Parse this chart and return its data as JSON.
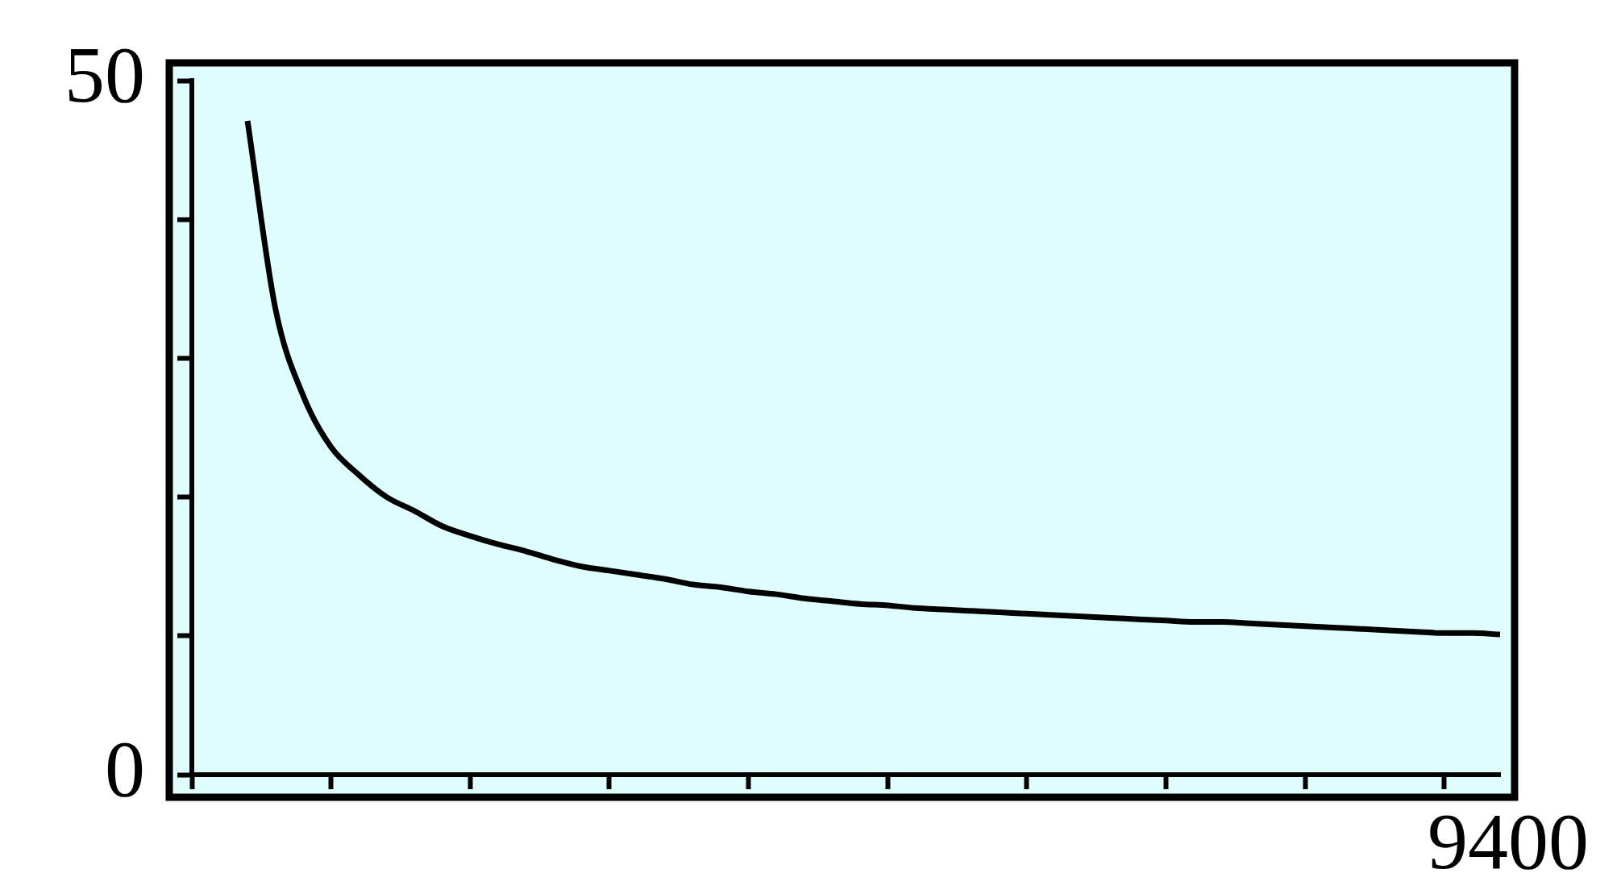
{
  "chart_data": {
    "type": "line",
    "categories": [
      null,
      null,
      null,
      null,
      null,
      null,
      null,
      null,
      null,
      null,
      null,
      null,
      null,
      null,
      null,
      null,
      null,
      null,
      null,
      null,
      null,
      null,
      null,
      null,
      null,
      null,
      null,
      null,
      null,
      null,
      null,
      null,
      null,
      null,
      null,
      null,
      null,
      null,
      null,
      null,
      null,
      null,
      null,
      null,
      null,
      null,
      null,
      null
    ],
    "series": [
      {
        "color": "#000000",
        "values": [
          null,
          null,
          47.1,
          33.6,
          27.3,
          23.6,
          21.6,
          20.0,
          19.0,
          17.9,
          17.2,
          16.6,
          16.1,
          15.5,
          15.0,
          14.7,
          14.4,
          14.1,
          13.7,
          13.5,
          13.2,
          13.0,
          12.7,
          12.5,
          12.3,
          12.2,
          12.0,
          11.9,
          11.8,
          11.7,
          11.6,
          11.5,
          11.4,
          11.3,
          11.2,
          11.1,
          11.0,
          11.0,
          10.9,
          10.8,
          10.7,
          10.6,
          10.5,
          10.4,
          10.3,
          10.2,
          10.2,
          10.1
        ]
      }
    ],
    "ylim": [
      0,
      50
    ],
    "yticks": [
      0,
      {
        "value": 10,
        "label": null
      },
      {
        "value": 20,
        "label": null
      },
      {
        "value": 30,
        "label": null
      },
      {
        "value": 40,
        "label": null
      },
      50
    ],
    "annotations": [
      "9400"
    ],
    "grid": false,
    "legend": false,
    "marker": "none",
    "line_style": "solid"
  }
}
